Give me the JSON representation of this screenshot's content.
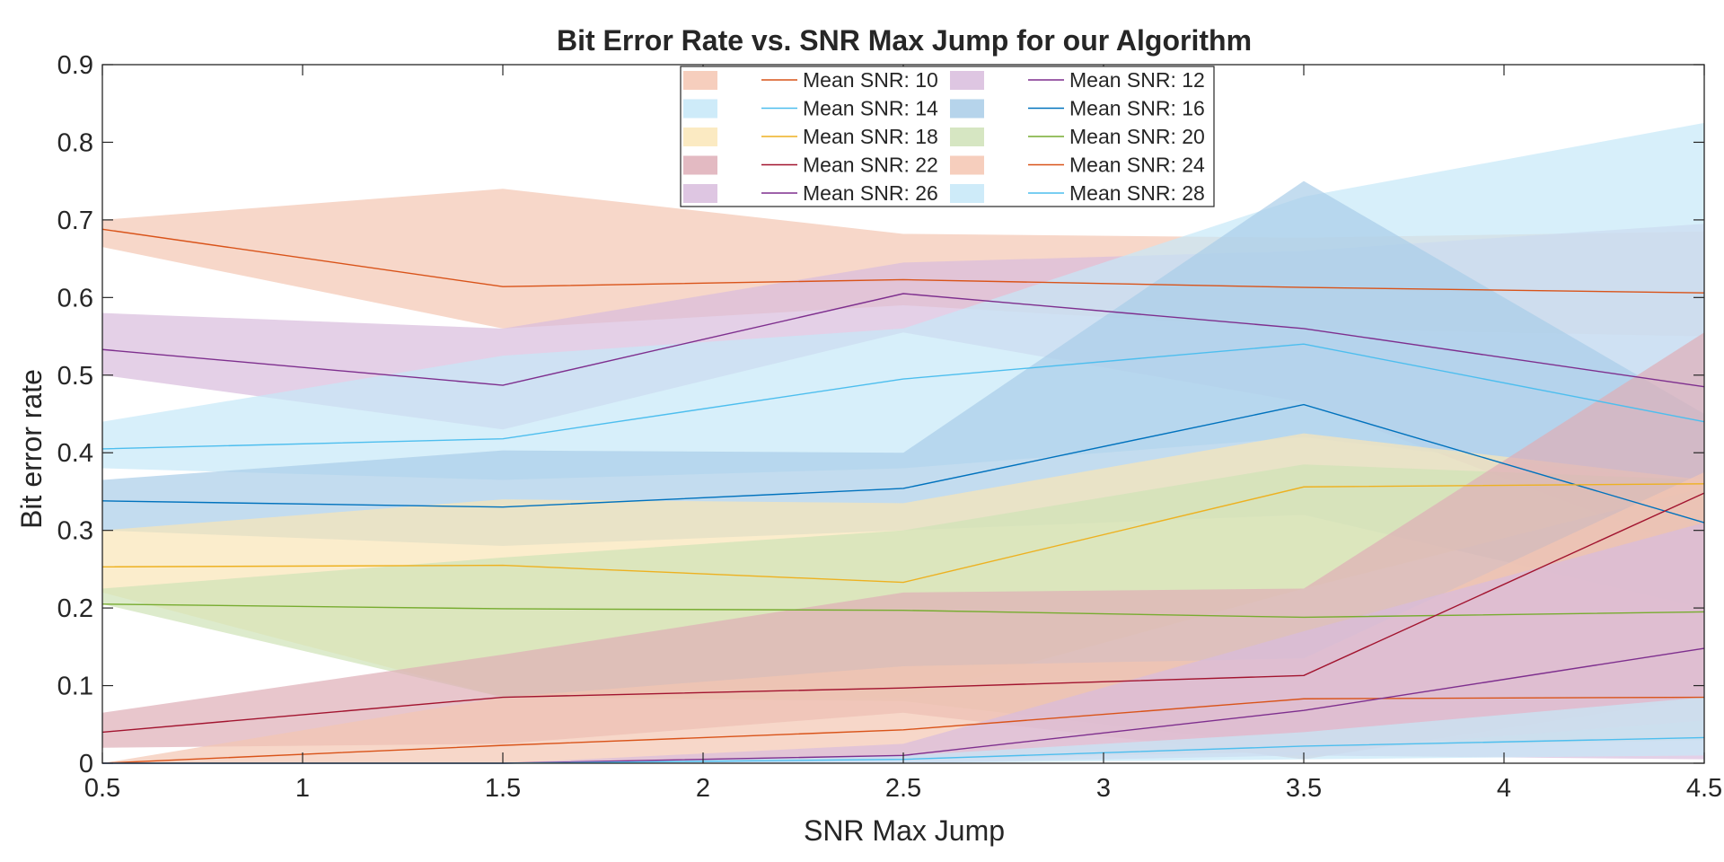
{
  "chart_data": {
    "type": "area",
    "title": "Bit Error Rate vs. SNR Max Jump for our Algorithm",
    "xlabel": "SNR Max Jump",
    "ylabel": "Bit error rate",
    "xlim": [
      0.5,
      4.5
    ],
    "ylim": [
      0,
      0.9
    ],
    "xticks": [
      "0.5",
      "1",
      "1.5",
      "2",
      "2.5",
      "3",
      "3.5",
      "4",
      "4.5"
    ],
    "yticks": [
      "0",
      "0.1",
      "0.2",
      "0.3",
      "0.4",
      "0.5",
      "0.6",
      "0.7",
      "0.8",
      "0.9"
    ],
    "grid": false,
    "legend_position": "top-center",
    "x": [
      0.5,
      1.5,
      2.5,
      3.5,
      4.5
    ],
    "series": [
      {
        "name": "Mean SNR: 10",
        "line_color": "#D95319",
        "fill_color": "#F4C6B2",
        "mean": [
          0.688,
          0.614,
          0.623,
          0.613,
          0.606
        ],
        "upper": [
          0.7,
          0.74,
          0.682,
          0.677,
          0.685
        ],
        "lower": [
          0.665,
          0.56,
          0.59,
          0.56,
          0.55
        ]
      },
      {
        "name": "Mean SNR: 12",
        "line_color": "#7E2F8E",
        "fill_color": "#D8BCDD",
        "mean": [
          0.533,
          0.487,
          0.605,
          0.56,
          0.485
        ],
        "upper": [
          0.58,
          0.56,
          0.645,
          0.66,
          0.695
        ],
        "lower": [
          0.5,
          0.43,
          0.555,
          0.465,
          0.27
        ]
      },
      {
        "name": "Mean SNR: 14",
        "line_color": "#4DBEEE",
        "fill_color": "#C6E8F8",
        "mean": [
          0.405,
          0.418,
          0.495,
          0.54,
          0.44
        ],
        "upper": [
          0.44,
          0.525,
          0.56,
          0.73,
          0.825
        ],
        "lower": [
          0.38,
          0.365,
          0.38,
          0.42,
          0.36
        ]
      },
      {
        "name": "Mean SNR: 16",
        "line_color": "#0072BD",
        "fill_color": "#A9CDE8",
        "mean": [
          0.338,
          0.33,
          0.354,
          0.462,
          0.31
        ],
        "upper": [
          0.365,
          0.403,
          0.4,
          0.75,
          0.45
        ],
        "lower": [
          0.3,
          0.28,
          0.3,
          0.32,
          0.2
        ]
      },
      {
        "name": "Mean SNR: 18",
        "line_color": "#EDB120",
        "fill_color": "#FAE6B7",
        "mean": [
          0.253,
          0.255,
          0.233,
          0.356,
          0.36
        ],
        "upper": [
          0.3,
          0.34,
          0.335,
          0.425,
          0.365
        ],
        "lower": [
          0.22,
          0.085,
          0.085,
          0.225,
          0.355
        ]
      },
      {
        "name": "Mean SNR: 20",
        "line_color": "#77AC30",
        "fill_color": "#CFE2B7",
        "mean": [
          0.205,
          0.199,
          0.197,
          0.188,
          0.195
        ],
        "upper": [
          0.225,
          0.265,
          0.3,
          0.385,
          0.365
        ],
        "lower": [
          0.205,
          0.085,
          0.08,
          0.02,
          0.03
        ]
      },
      {
        "name": "Mean SNR: 22",
        "line_color": "#A2142F",
        "fill_color": "#DEAEB7",
        "mean": [
          0.04,
          0.085,
          0.097,
          0.113,
          0.348
        ],
        "upper": [
          0.065,
          0.14,
          0.22,
          0.225,
          0.555
        ],
        "lower": [
          0.02,
          0.025,
          0.065,
          0.005,
          0.085
        ]
      },
      {
        "name": "Mean SNR: 24",
        "line_color": "#D95319",
        "fill_color": "#F4C6B2",
        "mean": [
          0.0,
          0.023,
          0.043,
          0.083,
          0.085
        ],
        "upper": [
          0.0,
          0.085,
          0.125,
          0.135,
          0.375
        ],
        "lower": [
          0.0,
          0.0,
          0.005,
          0.015,
          0.055
        ]
      },
      {
        "name": "Mean SNR: 26",
        "line_color": "#7E2F8E",
        "fill_color": "#D8BCDD",
        "mean": [
          0.0,
          0.0,
          0.01,
          0.068,
          0.148
        ],
        "upper": [
          0.0,
          0.0,
          0.025,
          0.17,
          0.31
        ],
        "lower": [
          0.0,
          0.0,
          0.0,
          0.01,
          0.005
        ]
      },
      {
        "name": "Mean SNR: 28",
        "line_color": "#4DBEEE",
        "fill_color": "#C6E8F8",
        "mean": [
          0.0,
          0.0,
          0.005,
          0.022,
          0.033
        ],
        "upper": [
          0.0,
          0.0,
          0.01,
          0.04,
          0.085
        ],
        "lower": [
          0.0,
          0.0,
          0.0,
          0.005,
          0.01
        ]
      }
    ]
  }
}
